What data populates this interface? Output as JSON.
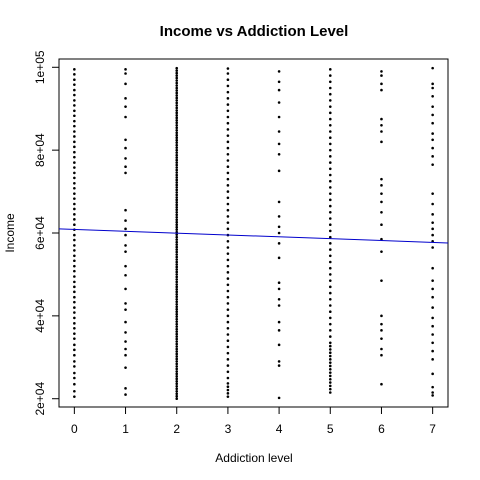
{
  "chart_data": {
    "type": "scatter",
    "title": "Income vs Addiction Level",
    "xlabel": "Addiction level",
    "ylabel": "Income",
    "xlim": [
      -0.3,
      7.3
    ],
    "ylim": [
      18000,
      102000
    ],
    "x_ticks": [
      0,
      1,
      2,
      3,
      4,
      5,
      6,
      7
    ],
    "x_tick_labels": [
      "0",
      "1",
      "2",
      "3",
      "4",
      "5",
      "6",
      "7"
    ],
    "y_ticks": [
      20000,
      40000,
      60000,
      80000,
      100000
    ],
    "y_tick_labels": [
      "2e+04",
      "4e+04",
      "6e+04",
      "8e+04",
      "1e+05"
    ],
    "grid": false,
    "legend": "none",
    "point_color": "#000000",
    "line_color": "#0000cc",
    "points_by_level": [
      {
        "x": 0,
        "y": [
          20500,
          21800,
          23500,
          25000,
          26200,
          27800,
          29000,
          30500,
          31800,
          33000,
          34500,
          35700,
          37000,
          38200,
          39500,
          40800,
          42000,
          43300,
          44500,
          45800,
          47000,
          48200,
          49500,
          50800,
          52000,
          53300,
          54500,
          55800,
          57000,
          58300,
          59500,
          60800,
          62000,
          63300,
          64500,
          65800,
          67000,
          68300,
          69500,
          70800,
          72000,
          73300,
          74500,
          75800,
          77000,
          78300,
          79500,
          80800,
          82000,
          83300,
          84500,
          85800,
          87000,
          88300,
          89500,
          90800,
          92000,
          93300,
          94500,
          95800,
          97000,
          98300,
          99500
        ]
      },
      {
        "x": 1,
        "y": [
          21000,
          22500,
          27500,
          30500,
          32000,
          33800,
          36000,
          38500,
          41500,
          43000,
          46500,
          49800,
          52000,
          55500,
          57000,
          59500,
          61000,
          63000,
          65500,
          74500,
          76000,
          78000,
          80500,
          82500,
          88000,
          90500,
          92500,
          96000,
          98500,
          99500
        ]
      },
      {
        "x": 2,
        "y": [
          20000,
          20600,
          21200,
          21800,
          22400,
          23000,
          23600,
          24200,
          24800,
          25400,
          26000,
          26600,
          27200,
          27800,
          28400,
          29000,
          29600,
          30200,
          30800,
          31400,
          32000,
          32600,
          33200,
          33800,
          34400,
          35000,
          35600,
          36200,
          36800,
          37400,
          38000,
          38600,
          39200,
          39800,
          40400,
          41000,
          41600,
          42200,
          42800,
          43400,
          44000,
          44600,
          45200,
          45800,
          46400,
          47000,
          47600,
          48200,
          48800,
          49400,
          50000,
          50600,
          51200,
          51800,
          52400,
          53000,
          53600,
          54200,
          54800,
          55400,
          56000,
          56600,
          57200,
          57800,
          58400,
          59000,
          59600,
          60200,
          60800,
          61400,
          62000,
          62600,
          63200,
          63800,
          64400,
          65000,
          65600,
          66200,
          66800,
          67400,
          68000,
          68600,
          69200,
          69800,
          70400,
          71000,
          71600,
          72200,
          72800,
          73400,
          74000,
          74600,
          75200,
          75800,
          76400,
          77000,
          77600,
          78200,
          78800,
          79400,
          80000,
          80600,
          81200,
          81800,
          82400,
          83000,
          83600,
          84200,
          84800,
          85400,
          86000,
          86600,
          87200,
          87800,
          88400,
          89000,
          89600,
          90200,
          90800,
          91400,
          92000,
          92600,
          93200,
          93800,
          94400,
          95000,
          95600,
          96200,
          96800,
          97400,
          98000,
          98600,
          99200,
          99800
        ]
      },
      {
        "x": 3,
        "y": [
          20500,
          21300,
          22100,
          22900,
          23700,
          25000,
          26500,
          28000,
          29500,
          31000,
          32500,
          34000,
          35500,
          37000,
          38500,
          40000,
          41500,
          43000,
          44500,
          46000,
          47500,
          49000,
          50500,
          52000,
          53500,
          55000,
          56500,
          58000,
          59500,
          61000,
          62500,
          64000,
          65500,
          67000,
          68500,
          70000,
          71500,
          73000,
          74500,
          76000,
          77500,
          79000,
          80500,
          82000,
          83500,
          85000,
          86500,
          88000,
          89500,
          91000,
          92500,
          94000,
          95500,
          97000,
          98500,
          99700
        ]
      },
      {
        "x": 4,
        "y": [
          20200,
          28000,
          29000,
          33000,
          36500,
          38500,
          42500,
          44000,
          46500,
          48000,
          54000,
          57500,
          60000,
          61500,
          64000,
          67500,
          75000,
          79000,
          81500,
          84500,
          88000,
          91500,
          94500,
          96500,
          99000
        ]
      },
      {
        "x": 5,
        "y": [
          21500,
          22300,
          23100,
          23900,
          24700,
          25500,
          26300,
          27100,
          27900,
          28700,
          29500,
          30300,
          31100,
          31900,
          32700,
          33500,
          35000,
          36500,
          38000,
          39500,
          41000,
          42500,
          44000,
          45500,
          47000,
          48500,
          50000,
          51500,
          53000,
          54500,
          56000,
          57500,
          59000,
          60500,
          62000,
          63500,
          65000,
          66500,
          68000,
          69500,
          71000,
          72500,
          74000,
          75500,
          77000,
          78500,
          80000,
          81500,
          83000,
          84500,
          86000,
          87500,
          89000,
          90500,
          92000,
          93500,
          95000,
          96500,
          98000,
          99500
        ]
      },
      {
        "x": 6,
        "y": [
          23500,
          30500,
          32000,
          34500,
          36500,
          38000,
          40000,
          48500,
          55500,
          58500,
          62000,
          65000,
          67500,
          69500,
          71500,
          73000,
          82000,
          84500,
          86000,
          87500,
          94500,
          96000,
          98000,
          99000
        ]
      },
      {
        "x": 7,
        "y": [
          20800,
          21500,
          22800,
          26000,
          29500,
          31500,
          33500,
          35500,
          37500,
          39500,
          42000,
          44500,
          46500,
          48500,
          51500,
          56500,
          58000,
          59500,
          61000,
          62500,
          64500,
          67000,
          69500,
          76500,
          78500,
          80500,
          82500,
          84000,
          86500,
          88500,
          90500,
          93000,
          95000,
          96000,
          99800
        ]
      }
    ],
    "regression_line": {
      "x": [
        -0.3,
        7.3
      ],
      "y": [
        61000,
        57600
      ]
    }
  }
}
